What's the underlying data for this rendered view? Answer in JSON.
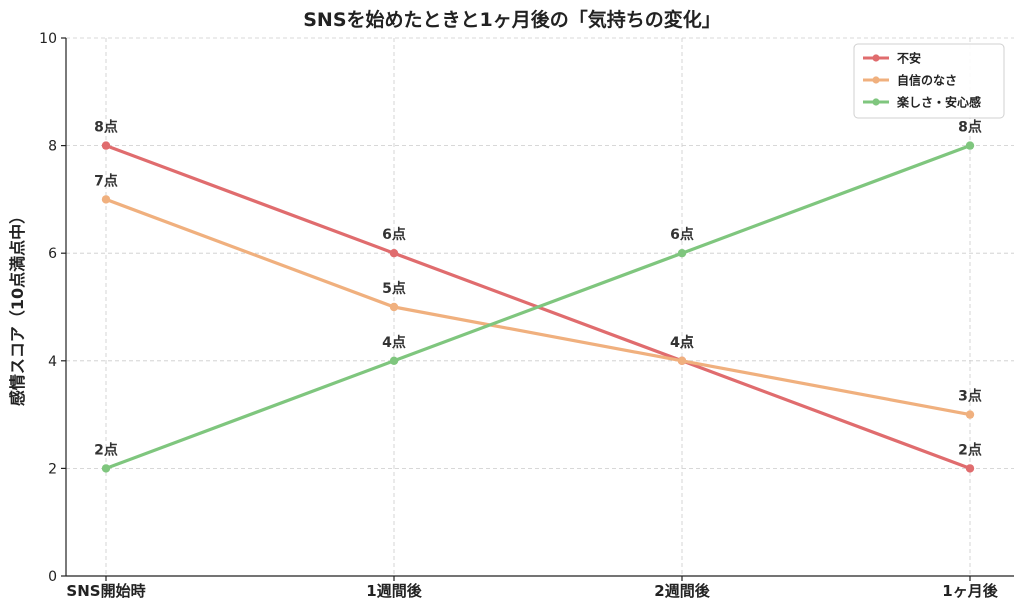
{
  "chart_data": {
    "type": "line",
    "title": "SNSを始めたときと1ヶ月後の「気持ちの変化」",
    "xlabel": "",
    "ylabel": "感情スコア（10点満点中）",
    "categories": [
      "SNS開始時",
      "1週間後",
      "2週間後",
      "1ヶ月後"
    ],
    "ylim": [
      0,
      10
    ],
    "yticks": [
      0,
      2,
      4,
      6,
      8,
      10
    ],
    "grid": true,
    "legend_position": "top-right",
    "data_label_suffix": "点",
    "series": [
      {
        "name": "不安",
        "color": "#e06c6e",
        "values": [
          8,
          6,
          4,
          2
        ]
      },
      {
        "name": "自信のなさ",
        "color": "#f0b07e",
        "values": [
          7,
          5,
          4,
          3
        ]
      },
      {
        "name": "楽しさ・安心感",
        "color": "#7fc67e",
        "values": [
          2,
          4,
          6,
          8
        ]
      }
    ]
  }
}
